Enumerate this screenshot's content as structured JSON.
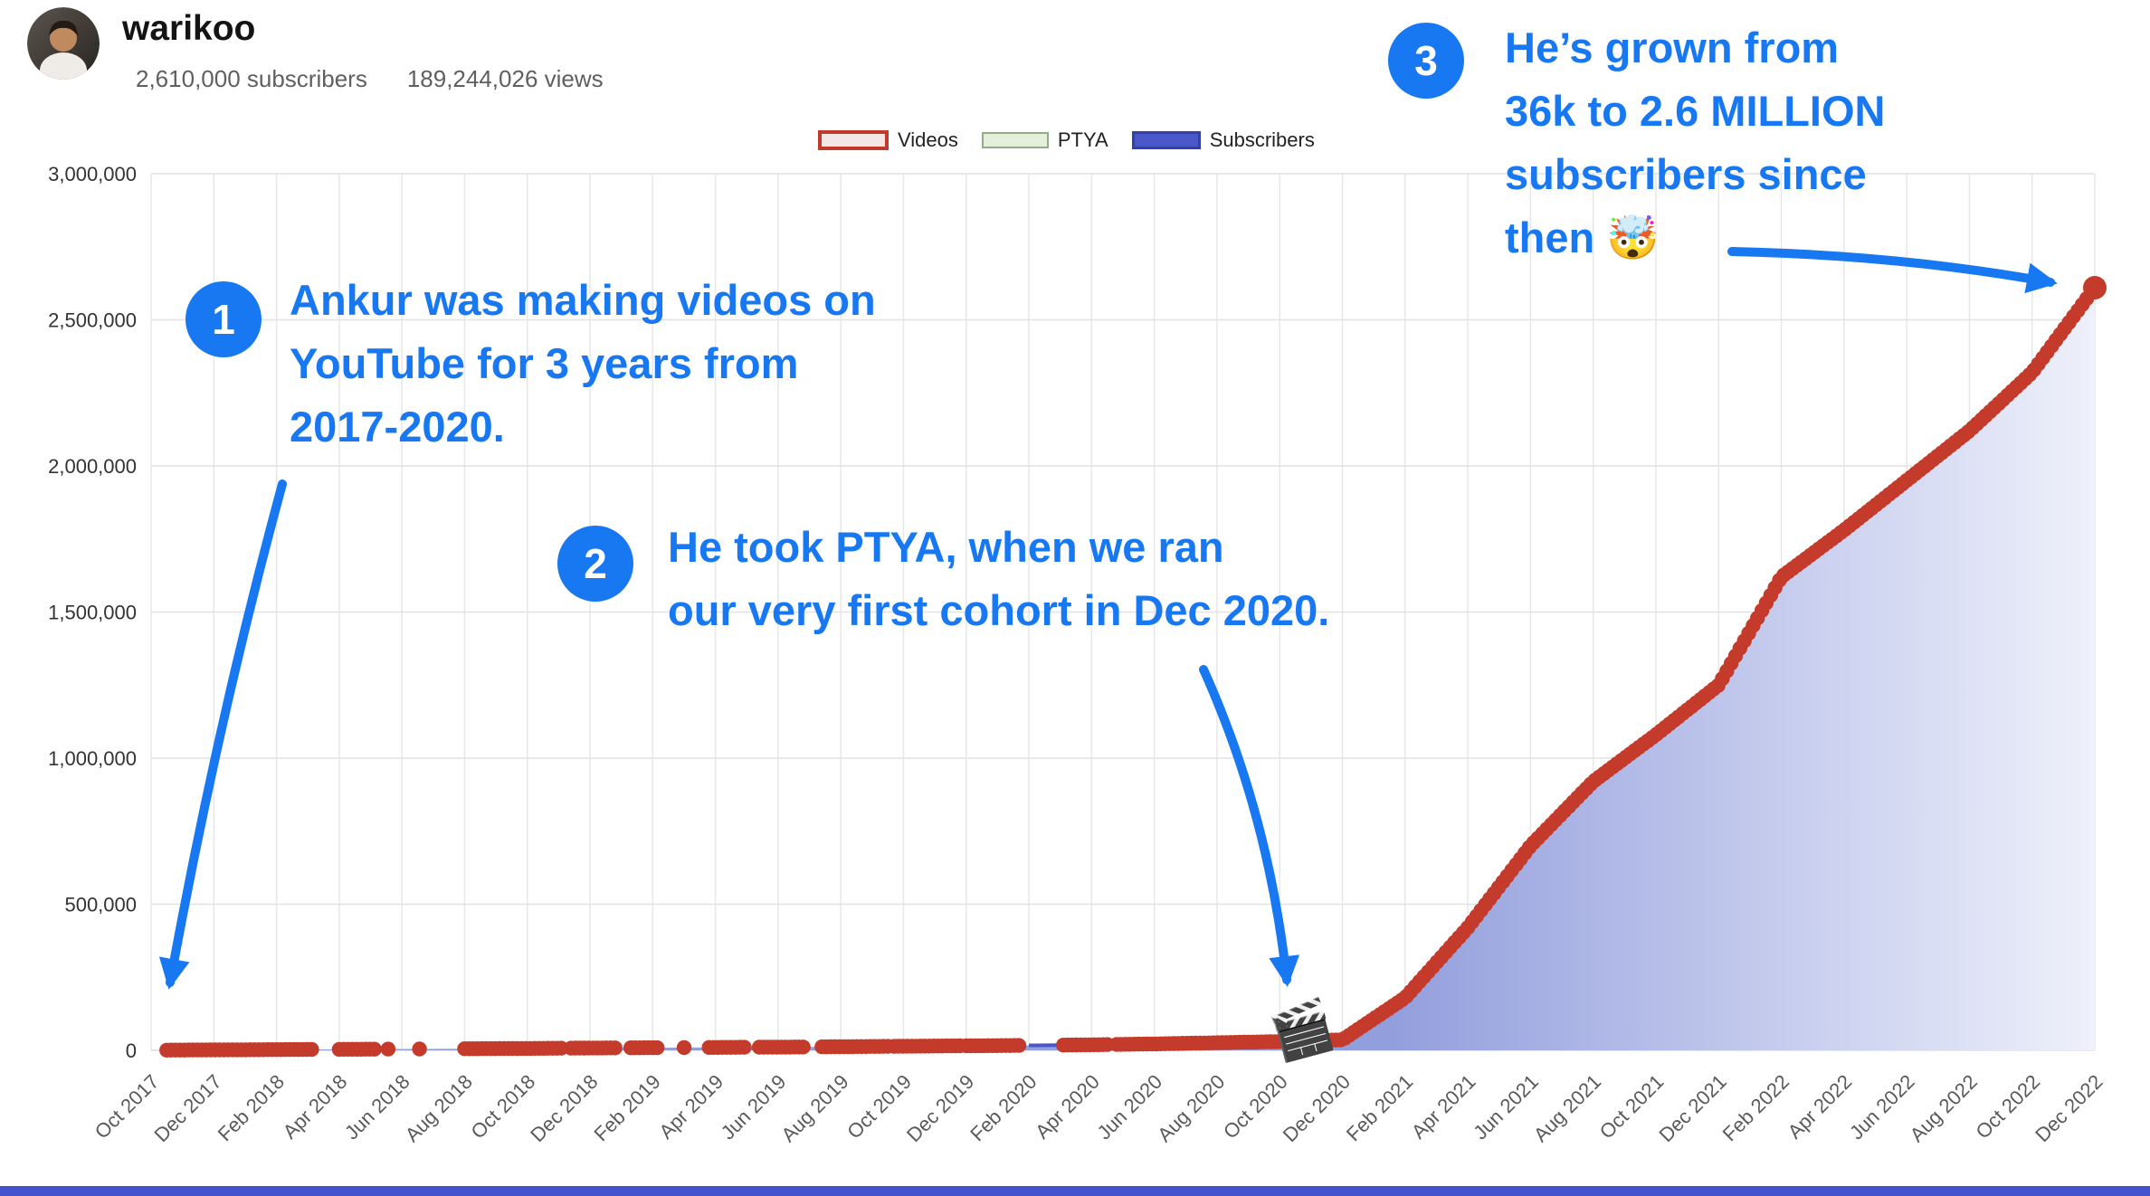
{
  "header": {
    "channel_name": "warikoo",
    "subscribers_text": "2,610,000 subscribers",
    "views_text": "189,244,026 views"
  },
  "legend": {
    "items": [
      {
        "label": "Videos"
      },
      {
        "label": "PTYA"
      },
      {
        "label": "Subscribers"
      }
    ]
  },
  "annotations": [
    {
      "number": "1",
      "lines": [
        "Ankur was making videos on",
        "YouTube for 3 years from",
        "2017-2020."
      ]
    },
    {
      "number": "2",
      "lines": [
        "He took PTYA, when we ran",
        "our very first cohort in Dec 2020."
      ]
    },
    {
      "number": "3",
      "lines": [
        "He’s grown from",
        "36k to 2.6 MILLION",
        "subscribers since",
        "then 🤯"
      ]
    }
  ],
  "markers": {
    "ptya_clapperboard": "🎬"
  },
  "colors": {
    "annotation_blue": "#1778f2",
    "videos_red": "#c43b2b",
    "subscribers_blue": "#4a57c8",
    "area_gradient_start": "#939fdd",
    "area_gradient_end": "#f0f2fb",
    "grid_line": "#e7e7e7",
    "axis_label": "#5a5a5a",
    "footer_bar": "#4453cd"
  },
  "chart_data": {
    "type": "area",
    "title": "",
    "legend_position": "top",
    "grid": true,
    "y_max": 3000000,
    "y_tick_labels": [
      "0",
      "500,000",
      "1,000,000",
      "1,500,000",
      "2,000,000",
      "2,500,000",
      "3,000,000"
    ],
    "x_tick_labels": [
      "Oct 2017",
      "Dec 2017",
      "Feb 2018",
      "Apr 2018",
      "Jun 2018",
      "Aug 2018",
      "Oct 2018",
      "Dec 2018",
      "Feb 2019",
      "Apr 2019",
      "Jun 2019",
      "Aug 2019",
      "Oct 2019",
      "Dec 2019",
      "Feb 2020",
      "Apr 2020",
      "Jun 2020",
      "Aug 2020",
      "Oct 2020",
      "Dec 2020",
      "Feb 2021",
      "Apr 2021",
      "Jun 2021",
      "Aug 2021",
      "Oct 2021",
      "Dec 2021",
      "Feb 2022",
      "Apr 2022",
      "Jun 2022",
      "Aug 2022",
      "Oct 2022",
      "Dec 2022"
    ],
    "series": [
      {
        "name": "Subscribers",
        "values": [
          500,
          1500,
          2500,
          3500,
          4500,
          5500,
          6500,
          8000,
          9000,
          10000,
          11000,
          12500,
          14000,
          15500,
          17000,
          19000,
          22000,
          26000,
          30000,
          36000,
          180000,
          420000,
          700000,
          920000,
          1080000,
          1250000,
          1620000,
          1780000,
          1950000,
          2120000,
          2320000,
          2610000
        ]
      }
    ],
    "video_marker_ranges_tick_units": [
      [
        0.25,
        2.6
      ],
      [
        3.0,
        3.6
      ],
      [
        3.78,
        3.82
      ],
      [
        4.28,
        4.32
      ],
      [
        5.0,
        6.6
      ],
      [
        6.7,
        7.4
      ],
      [
        7.65,
        8.1
      ],
      [
        8.5,
        8.55
      ],
      [
        8.9,
        9.5
      ],
      [
        9.7,
        10.45
      ],
      [
        10.7,
        11.8
      ],
      [
        11.85,
        12.9
      ],
      [
        13.0,
        13.9
      ],
      [
        14.55,
        15.3
      ],
      [
        15.4,
        16.5
      ],
      [
        16.45,
        31.0
      ]
    ],
    "video_marker_step": 0.07,
    "subscriber_line_visible_from_tick": 14,
    "ptya_marker_tick": 18.3,
    "final_point": {
      "x_label": "Dec 2022",
      "value": 2610000
    }
  }
}
